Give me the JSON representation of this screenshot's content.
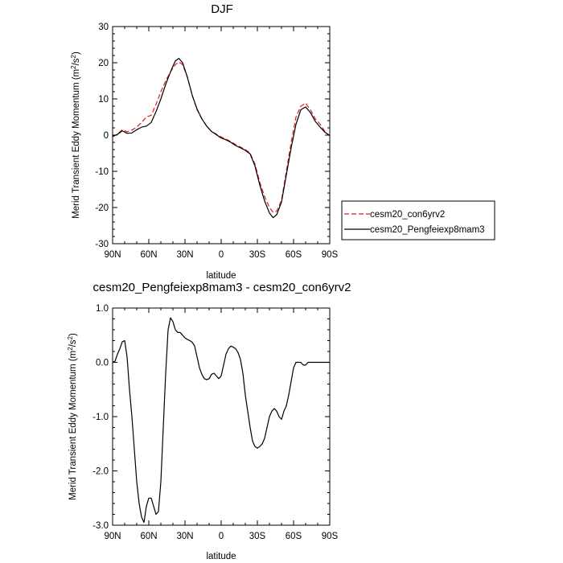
{
  "chart_data": [
    {
      "type": "line",
      "title": "DJF",
      "xlabel": "latitude",
      "ylabel": "Merid Transient Eddy Momentum (m",
      "ylabel_sup1": "2",
      "ylabel_mid": "/s",
      "ylabel_sup2": "2",
      "ylabel_end": ")",
      "xlim": [
        -90,
        90
      ],
      "ylim": [
        -30,
        30
      ],
      "x_ticks": [
        {
          "value": -90,
          "label": "90N"
        },
        {
          "value": -60,
          "label": "60N"
        },
        {
          "value": -30,
          "label": "30N"
        },
        {
          "value": 0,
          "label": "0"
        },
        {
          "value": 30,
          "label": "30S"
        },
        {
          "value": 60,
          "label": "60S"
        },
        {
          "value": 90,
          "label": "90S"
        }
      ],
      "y_ticks": [
        {
          "value": -30,
          "label": "-30"
        },
        {
          "value": -20,
          "label": "-20"
        },
        {
          "value": -10,
          "label": "-10"
        },
        {
          "value": 0,
          "label": "0"
        },
        {
          "value": 10,
          "label": "10"
        },
        {
          "value": 20,
          "label": "20"
        },
        {
          "value": 30,
          "label": "30"
        }
      ],
      "legend_position": "right",
      "series": [
        {
          "name": "cesm20_con6yrv2",
          "color": "#e41a1c",
          "dash": "dashed",
          "x": [
            -90,
            -86,
            -82,
            -78,
            -74,
            -70,
            -66,
            -62,
            -58,
            -54,
            -50,
            -46,
            -42,
            -38,
            -35,
            -32,
            -28,
            -24,
            -20,
            -16,
            -12,
            -8,
            -4,
            0,
            4,
            8,
            12,
            16,
            20,
            24,
            28,
            32,
            36,
            40,
            43,
            46,
            50,
            54,
            58,
            62,
            66,
            70,
            74,
            78,
            82,
            86,
            90
          ],
          "y": [
            -0.5,
            0.3,
            1.5,
            0.9,
            1.4,
            2.2,
            3.5,
            5.0,
            5.5,
            8.5,
            12.0,
            15.0,
            17.5,
            19.5,
            20.2,
            19.5,
            16.0,
            11.0,
            7.0,
            4.5,
            2.5,
            1.0,
            0.3,
            -0.5,
            -1.1,
            -1.8,
            -2.6,
            -3.3,
            -4.0,
            -5.0,
            -8.0,
            -13.0,
            -17.0,
            -20.0,
            -21.3,
            -21.0,
            -18.0,
            -10.0,
            -2.0,
            5.0,
            8.0,
            8.8,
            7.0,
            4.5,
            3.0,
            1.0,
            -0.3
          ]
        },
        {
          "name": "cesm20_Pengfeiexp8mam3",
          "color": "#000000",
          "dash": "solid",
          "x": [
            -90,
            -86,
            -82,
            -78,
            -74,
            -70,
            -66,
            -62,
            -58,
            -54,
            -50,
            -46,
            -42,
            -38,
            -35,
            -32,
            -28,
            -24,
            -20,
            -16,
            -12,
            -8,
            -4,
            0,
            4,
            8,
            12,
            16,
            20,
            24,
            28,
            32,
            36,
            40,
            43,
            46,
            50,
            54,
            58,
            62,
            66,
            70,
            74,
            78,
            82,
            86,
            90
          ],
          "y": [
            -0.3,
            0.2,
            1.2,
            0.5,
            0.6,
            1.5,
            2.2,
            2.5,
            3.5,
            6.5,
            10.0,
            14.0,
            17.5,
            20.5,
            21.2,
            20.0,
            16.0,
            11.0,
            7.2,
            4.5,
            2.5,
            1.0,
            0.1,
            -0.8,
            -1.3,
            -2.0,
            -2.9,
            -3.5,
            -4.2,
            -5.2,
            -8.5,
            -13.8,
            -18.2,
            -21.5,
            -22.8,
            -22.0,
            -18.5,
            -11.0,
            -3.5,
            3.0,
            7.0,
            7.8,
            6.2,
            3.8,
            2.2,
            0.8,
            -0.1
          ]
        }
      ]
    },
    {
      "type": "line",
      "title": "cesm20_Pengfeiexp8mam3 - cesm20_con6yrv2",
      "xlabel": "latitude",
      "ylabel": "Merid Transient Eddy Momentum (m",
      "ylabel_sup1": "2",
      "ylabel_mid": "/s",
      "ylabel_sup2": "2",
      "ylabel_end": ")",
      "xlim": [
        -90,
        90
      ],
      "ylim": [
        -3,
        1
      ],
      "x_ticks": [
        {
          "value": -90,
          "label": "90N"
        },
        {
          "value": -60,
          "label": "60N"
        },
        {
          "value": -30,
          "label": "30N"
        },
        {
          "value": 0,
          "label": "0"
        },
        {
          "value": 30,
          "label": "30S"
        },
        {
          "value": 60,
          "label": "60S"
        },
        {
          "value": 90,
          "label": "90S"
        }
      ],
      "y_ticks": [
        {
          "value": -3,
          "label": "-3.0"
        },
        {
          "value": -2,
          "label": "-2.0"
        },
        {
          "value": -1,
          "label": "-1.0"
        },
        {
          "value": 0,
          "label": "0.0"
        },
        {
          "value": 1,
          "label": "1.0"
        }
      ],
      "series": [
        {
          "name": "",
          "color": "#000000",
          "dash": "solid",
          "x": [
            -90,
            -88,
            -86,
            -84,
            -82,
            -80,
            -78,
            -76,
            -74,
            -72,
            -70,
            -68,
            -66,
            -64,
            -62,
            -60,
            -58,
            -56,
            -54,
            -52,
            -50,
            -48,
            -46,
            -44,
            -42,
            -40,
            -38,
            -36,
            -34,
            -32,
            -30,
            -28,
            -26,
            -24,
            -22,
            -20,
            -18,
            -16,
            -14,
            -12,
            -10,
            -8,
            -6,
            -4,
            -2,
            0,
            2,
            4,
            6,
            8,
            10,
            12,
            14,
            16,
            18,
            20,
            22,
            24,
            26,
            28,
            30,
            32,
            34,
            36,
            38,
            40,
            42,
            44,
            46,
            48,
            50,
            52,
            54,
            56,
            58,
            60,
            62,
            64,
            66,
            68,
            70,
            72,
            74,
            76,
            78,
            80,
            82,
            84,
            86,
            88,
            90
          ],
          "y": [
            0.0,
            0.02,
            0.15,
            0.25,
            0.38,
            0.4,
            0.1,
            -0.5,
            -1.0,
            -1.6,
            -2.2,
            -2.6,
            -2.85,
            -2.95,
            -2.65,
            -2.5,
            -2.5,
            -2.65,
            -2.8,
            -2.75,
            -2.2,
            -1.2,
            -0.2,
            0.6,
            0.82,
            0.75,
            0.6,
            0.55,
            0.55,
            0.5,
            0.45,
            0.42,
            0.4,
            0.37,
            0.3,
            0.1,
            -0.1,
            -0.22,
            -0.3,
            -0.32,
            -0.3,
            -0.22,
            -0.2,
            -0.25,
            -0.3,
            -0.25,
            -0.05,
            0.15,
            0.25,
            0.3,
            0.28,
            0.25,
            0.18,
            0.05,
            -0.2,
            -0.6,
            -0.9,
            -1.2,
            -1.45,
            -1.55,
            -1.58,
            -1.55,
            -1.5,
            -1.4,
            -1.2,
            -1.0,
            -0.9,
            -0.85,
            -0.9,
            -1.0,
            -1.05,
            -0.9,
            -0.8,
            -0.6,
            -0.35,
            -0.1,
            0.0,
            0.0,
            0.0,
            -0.05,
            -0.05,
            0.0,
            0.0,
            0.0,
            0.0,
            0.0,
            0.0,
            0.0,
            0.0,
            0.0,
            0.0
          ]
        }
      ]
    }
  ]
}
